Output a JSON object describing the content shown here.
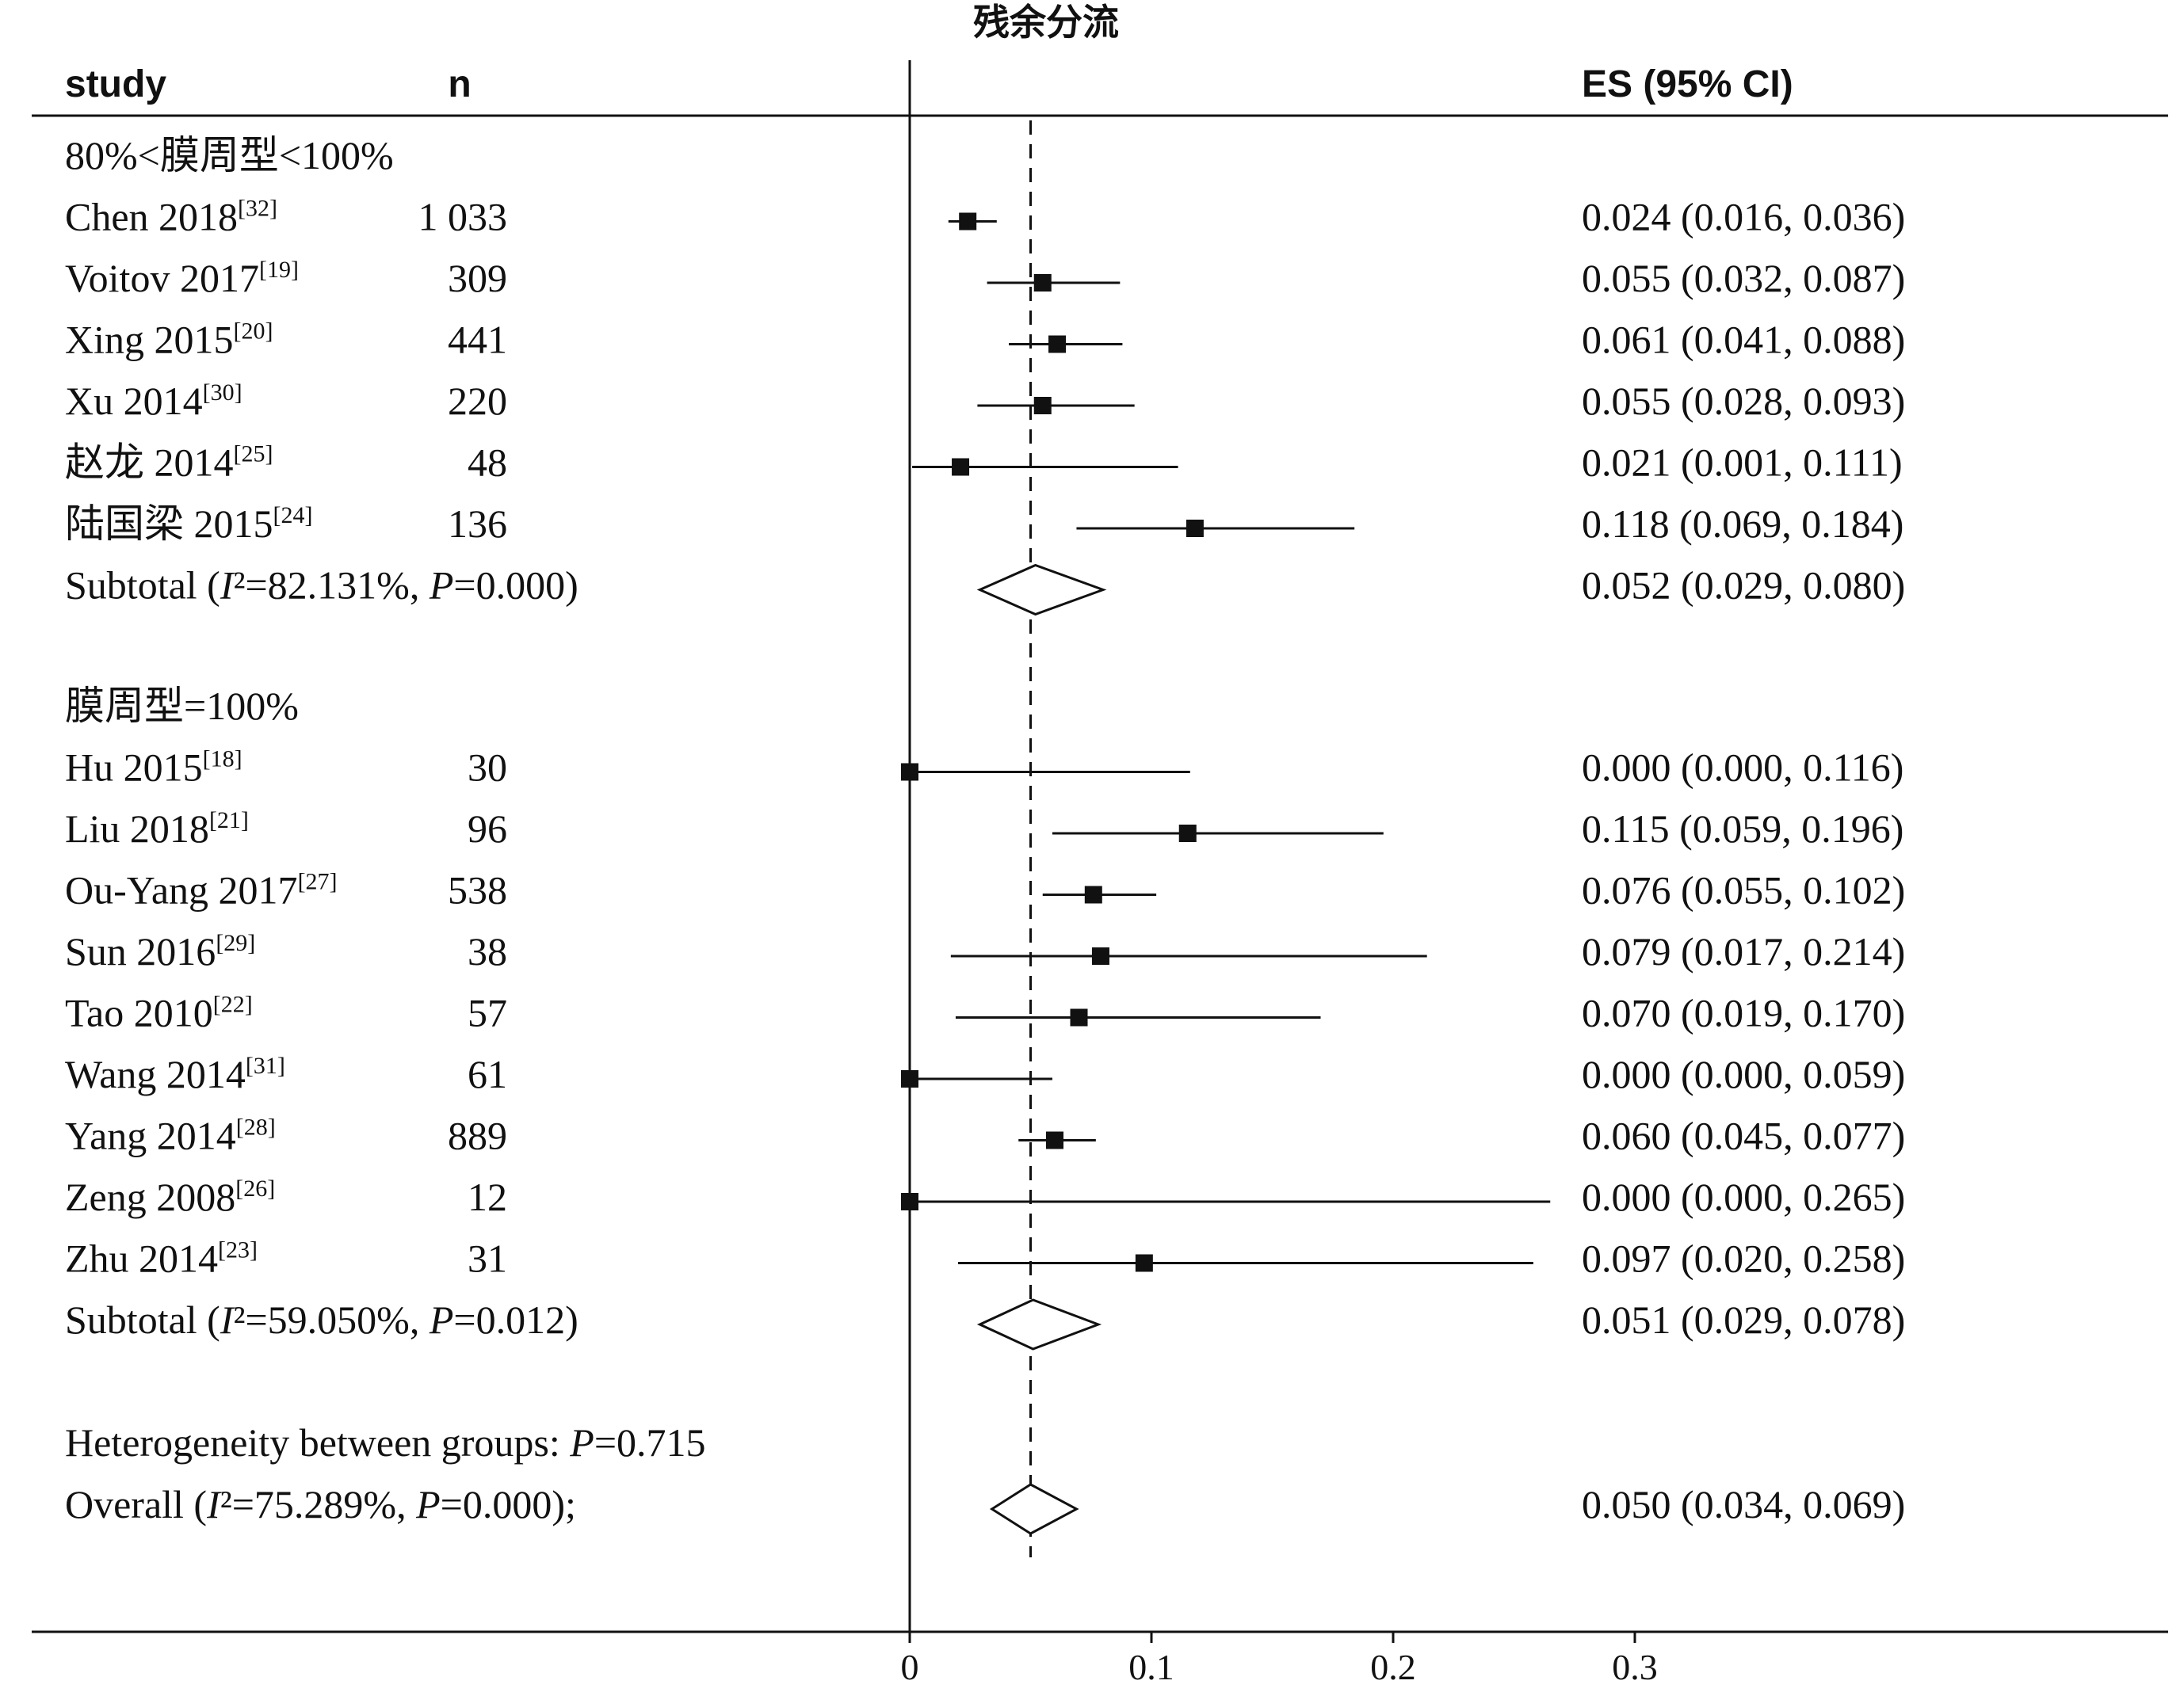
{
  "chart_data": {
    "type": "forest",
    "title": "残余分流",
    "columns": {
      "study": "study",
      "n": "n",
      "es": "ES (95% CI)"
    },
    "null_line": 0,
    "overall_line": 0.05,
    "xlim": [
      0,
      0.3
    ],
    "x_ticks": [
      "0",
      "0.1",
      "0.2",
      "0.3"
    ],
    "groups": [
      {
        "label": "80%<膜周型<100%",
        "studies": [
          {
            "name": "Chen 2018",
            "ref": "[32]",
            "n": "1 033",
            "es": 0.024,
            "lo": 0.016,
            "hi": 0.036,
            "es_text": "0.024 (0.016, 0.036)"
          },
          {
            "name": "Voitov 2017",
            "ref": "[19]",
            "n": "309",
            "es": 0.055,
            "lo": 0.032,
            "hi": 0.087,
            "es_text": "0.055 (0.032, 0.087)"
          },
          {
            "name": "Xing 2015",
            "ref": "[20]",
            "n": "441",
            "es": 0.061,
            "lo": 0.041,
            "hi": 0.088,
            "es_text": "0.061 (0.041, 0.088)"
          },
          {
            "name": "Xu 2014",
            "ref": "[30]",
            "n": "220",
            "es": 0.055,
            "lo": 0.028,
            "hi": 0.093,
            "es_text": "0.055 (0.028, 0.093)"
          },
          {
            "name": "赵龙 2014",
            "ref": "[25]",
            "n": "48",
            "es": 0.021,
            "lo": 0.001,
            "hi": 0.111,
            "es_text": "0.021 (0.001, 0.111)"
          },
          {
            "name": "陆国梁 2015",
            "ref": "[24]",
            "n": "136",
            "es": 0.118,
            "lo": 0.069,
            "hi": 0.184,
            "es_text": "0.118 (0.069, 0.184)"
          }
        ],
        "subtotal": {
          "label": "Subtotal  (I²=82.131%, P=0.000)",
          "es": 0.052,
          "lo": 0.029,
          "hi": 0.08,
          "es_text": "0.052 (0.029, 0.080)"
        }
      },
      {
        "label": "膜周型=100%",
        "studies": [
          {
            "name": "Hu 2015",
            "ref": "[18]",
            "n": "30",
            "es": 0.0,
            "lo": 0.0,
            "hi": 0.116,
            "es_text": "0.000 (0.000, 0.116)"
          },
          {
            "name": "Liu 2018",
            "ref": "[21]",
            "n": "96",
            "es": 0.115,
            "lo": 0.059,
            "hi": 0.196,
            "es_text": "0.115 (0.059, 0.196)"
          },
          {
            "name": "Ou-Yang 2017",
            "ref": "[27]",
            "n": "538",
            "es": 0.076,
            "lo": 0.055,
            "hi": 0.102,
            "es_text": "0.076 (0.055, 0.102)"
          },
          {
            "name": "Sun 2016",
            "ref": "[29]",
            "n": "38",
            "es": 0.079,
            "lo": 0.017,
            "hi": 0.214,
            "es_text": "0.079 (0.017, 0.214)"
          },
          {
            "name": "Tao 2010",
            "ref": "[22]",
            "n": "57",
            "es": 0.07,
            "lo": 0.019,
            "hi": 0.17,
            "es_text": "0.070 (0.019, 0.170)"
          },
          {
            "name": "Wang 2014",
            "ref": "[31]",
            "n": "61",
            "es": 0.0,
            "lo": 0.0,
            "hi": 0.059,
            "es_text": "0.000 (0.000, 0.059)"
          },
          {
            "name": "Yang 2014",
            "ref": "[28]",
            "n": "889",
            "es": 0.06,
            "lo": 0.045,
            "hi": 0.077,
            "es_text": "0.060 (0.045, 0.077)"
          },
          {
            "name": "Zeng 2008",
            "ref": "[26]",
            "n": "12",
            "es": 0.0,
            "lo": 0.0,
            "hi": 0.265,
            "es_text": "0.000 (0.000, 0.265)"
          },
          {
            "name": "Zhu 2014",
            "ref": "[23]",
            "n": "31",
            "es": 0.097,
            "lo": 0.02,
            "hi": 0.258,
            "es_text": "0.097 (0.020, 0.258)"
          }
        ],
        "subtotal": {
          "label": "Subtotal  (I²=59.050%, P=0.012)",
          "es": 0.051,
          "lo": 0.029,
          "hi": 0.078,
          "es_text": "0.051 (0.029, 0.078)"
        }
      }
    ],
    "heterogeneity": "Heterogeneity between groups: P=0.715",
    "overall": {
      "label": "Overall  (I²=75.289%, P=0.000);",
      "es": 0.05,
      "lo": 0.034,
      "hi": 0.069,
      "es_text": "0.050 (0.034, 0.069)"
    }
  }
}
